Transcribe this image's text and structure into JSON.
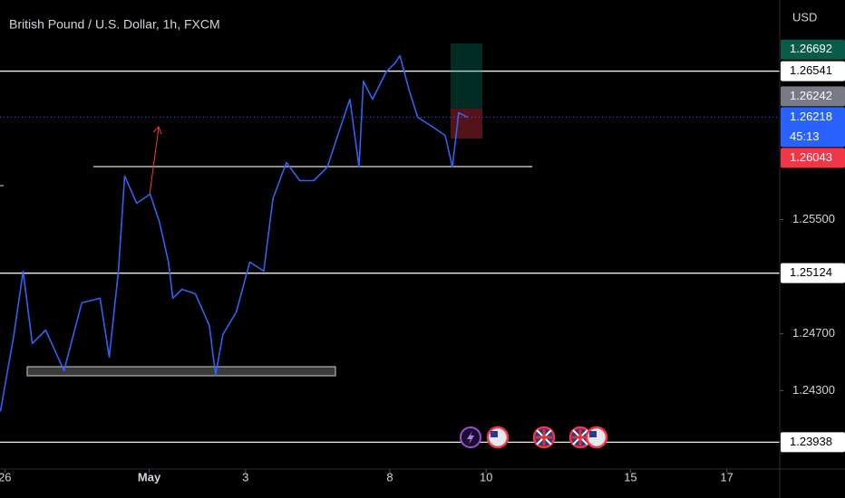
{
  "chart_data": {
    "type": "line",
    "title": "British Pound / U.S. Dollar, 1h, FXCM",
    "currency": "USD",
    "x": [
      -0.09,
      0.19,
      0.38,
      0.57,
      0.85,
      1.23,
      1.6,
      1.98,
      2.17,
      2.36,
      2.49,
      2.74,
      3.02,
      3.21,
      3.4,
      3.49,
      3.68,
      3.96,
      4.25,
      4.38,
      4.53,
      4.81,
      5.09,
      5.38,
      5.57,
      5.85,
      6.13,
      6.42,
      6.7,
      6.98,
      7.17,
      7.36,
      7.45,
      7.64,
      7.92,
      8.11,
      8.21,
      8.4,
      8.58,
      8.87,
      9.15,
      9.3,
      9.43,
      9.62
    ],
    "series": [
      {
        "color": "#2f63f0",
        "values": [
          1.24154,
          1.24694,
          1.25138,
          1.2463,
          1.24725,
          1.2444,
          1.24916,
          1.24948,
          1.24535,
          1.25138,
          1.25805,
          1.25614,
          1.25678,
          1.25487,
          1.25202,
          1.24948,
          1.25011,
          1.24979,
          1.24757,
          1.24408,
          1.24694,
          1.24852,
          1.25202,
          1.25138,
          1.25646,
          1.259,
          1.25773,
          1.25773,
          1.25868,
          1.26154,
          1.26344,
          1.25868,
          1.26471,
          1.26344,
          1.26535,
          1.26598,
          1.26649,
          1.26408,
          1.26217,
          1.26154,
          1.2609,
          1.25868,
          1.26249,
          1.26217
        ]
      }
    ],
    "xlim": [
      -0.1,
      16.1
    ],
    "xticks": [
      {
        "value": 0,
        "label": "26"
      },
      {
        "value": 3,
        "label": "May"
      },
      {
        "value": 5,
        "label": "3"
      },
      {
        "value": 8,
        "label": "8"
      },
      {
        "value": 10,
        "label": "10"
      },
      {
        "value": 13,
        "label": "15"
      },
      {
        "value": 15,
        "label": "17"
      }
    ],
    "ylim": [
      1.2375,
      1.2704
    ],
    "yticks": [
      {
        "value": 1.255,
        "label": "1.25500"
      },
      {
        "value": 1.247,
        "label": "1.24700"
      },
      {
        "value": 1.243,
        "label": "1.24300"
      }
    ],
    "levels": [
      1.26541,
      1.25124,
      1.23938
    ],
    "price_tags": [
      {
        "value": 1.26692,
        "label": "1.26692",
        "color": "#0a5c4a"
      },
      {
        "value": 1.26242,
        "label": "1.26242",
        "color": "#787b86"
      },
      {
        "value": 1.26218,
        "label": "1.26218",
        "color": "#2962ff"
      },
      {
        "value": 1.26043,
        "label": "1.26043",
        "color": "#f23645"
      }
    ],
    "countdown": "45:13"
  }
}
